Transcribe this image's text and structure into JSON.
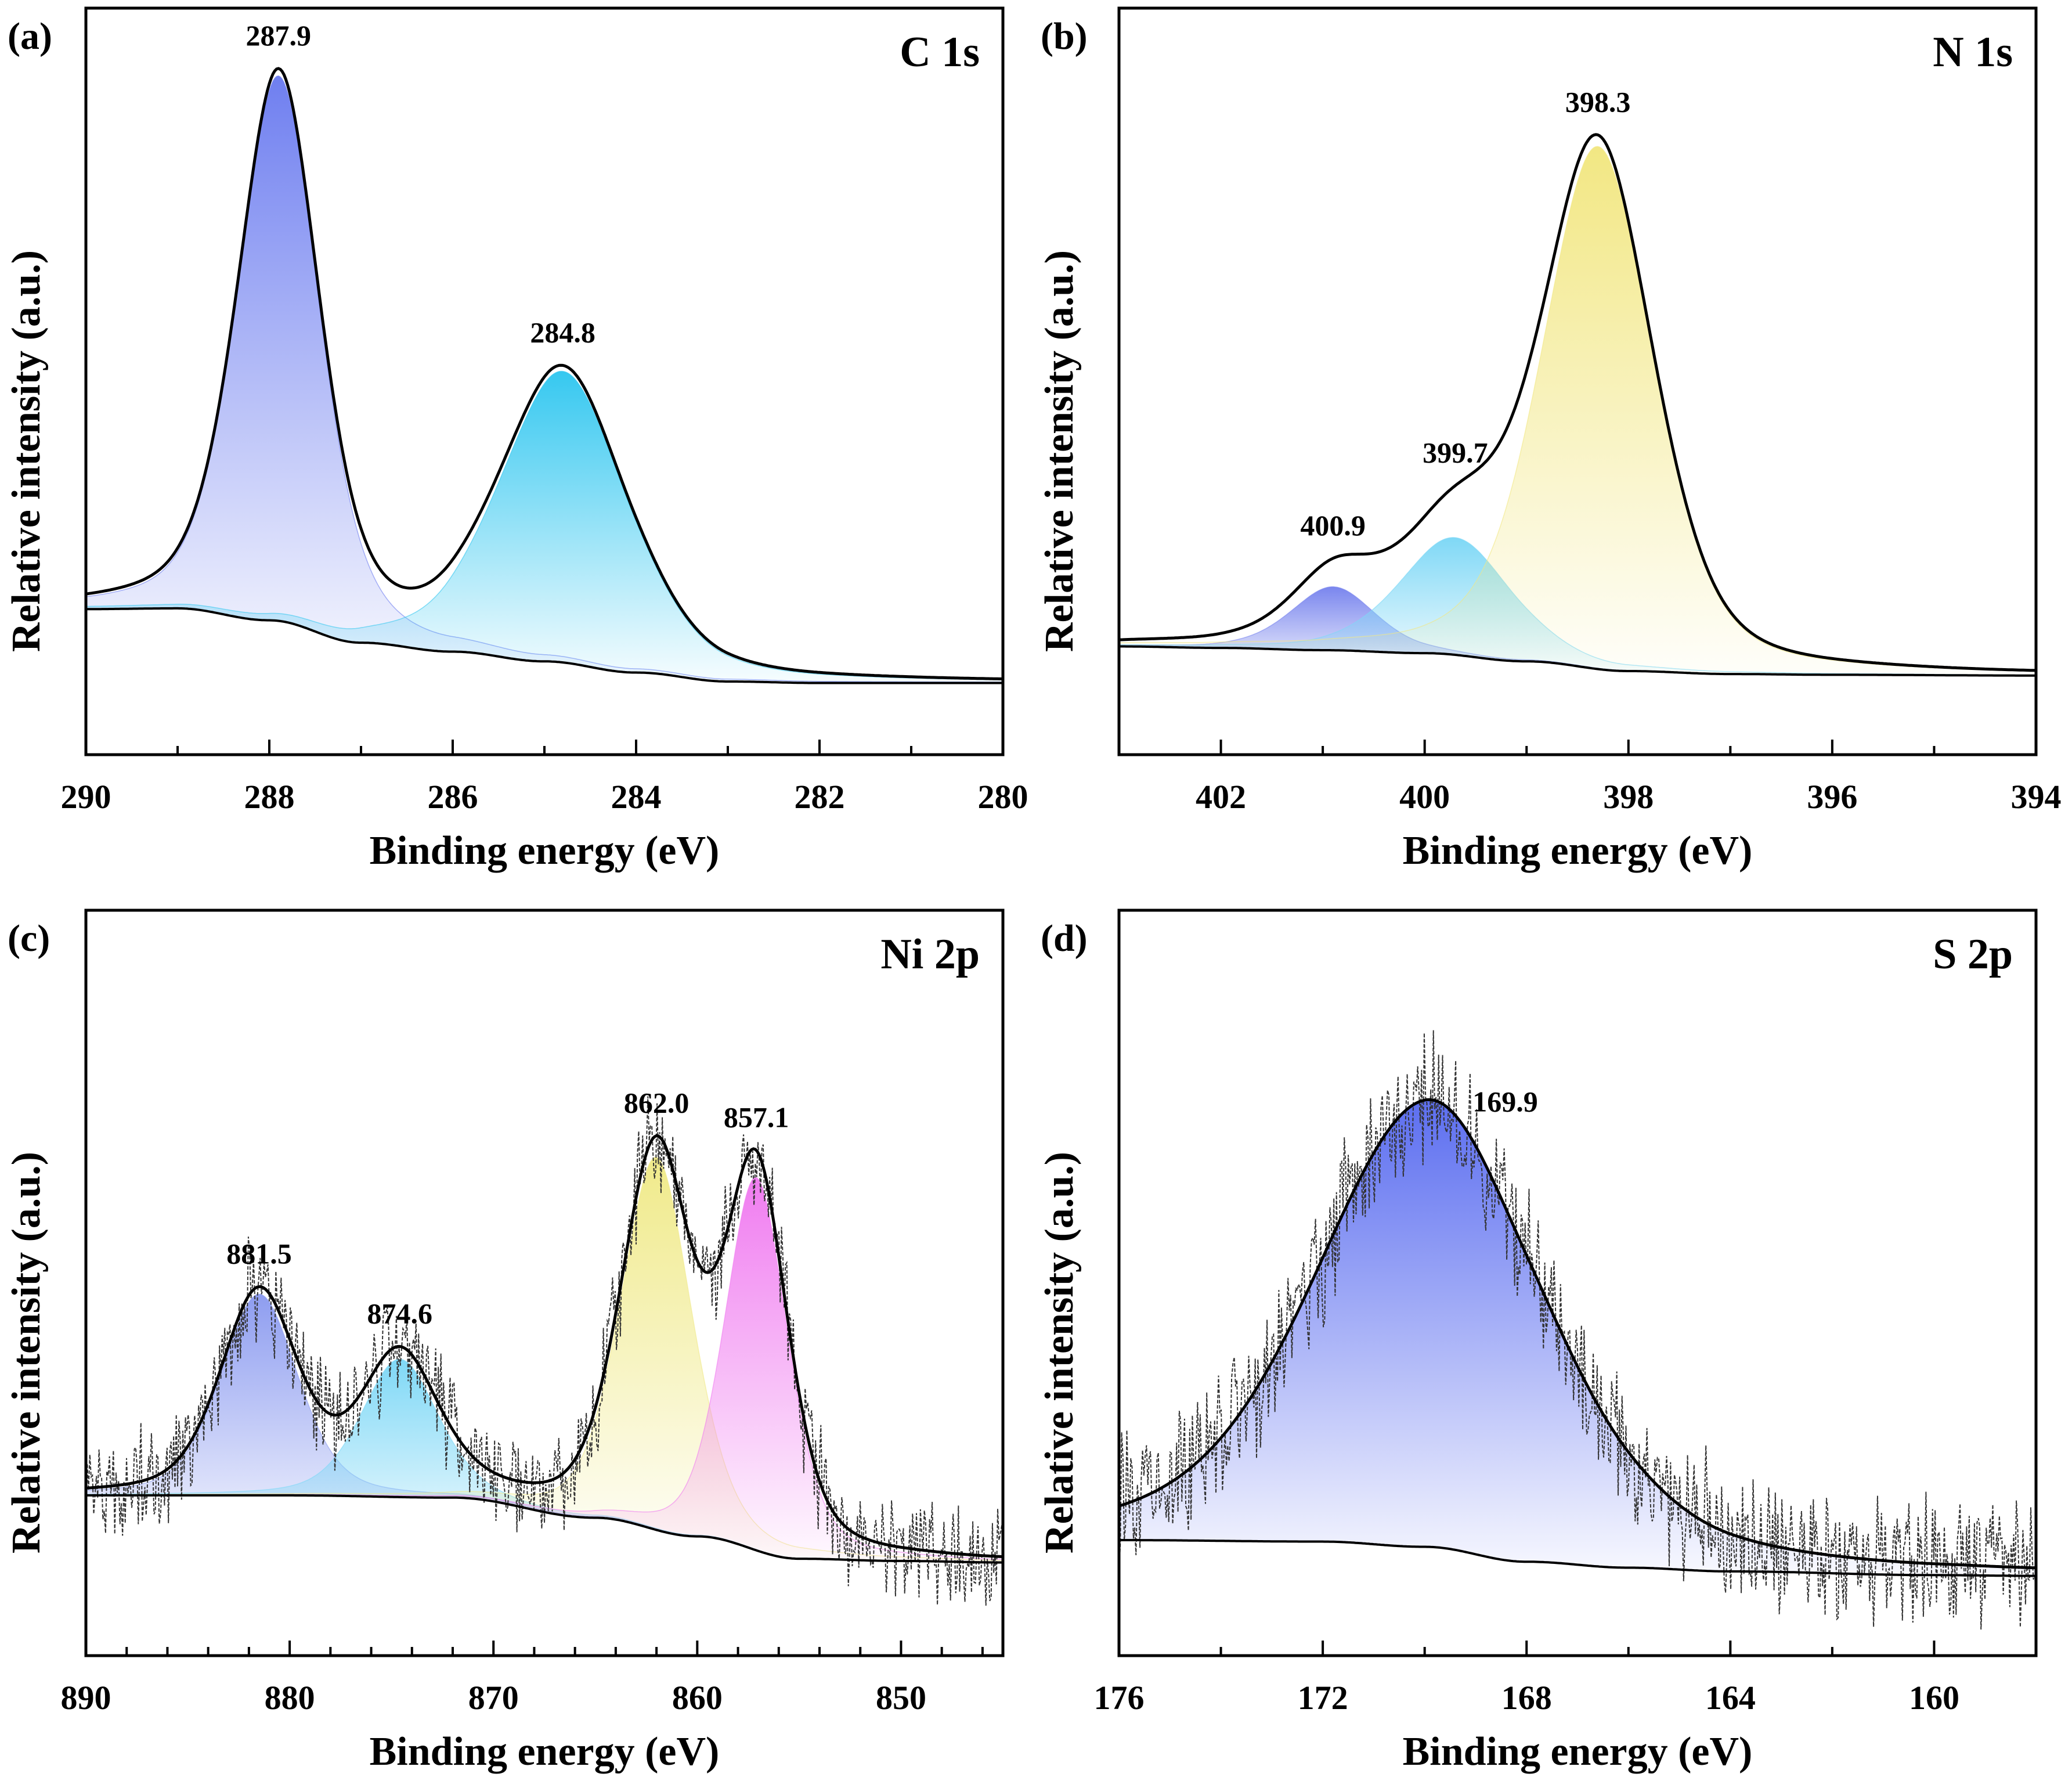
{
  "figure": {
    "x_title": "Binding energy (eV)",
    "y_title": "Relative intensity (a.u.)"
  },
  "chart_data": [
    {
      "type": "line",
      "panel_label": "(a)",
      "title": "C 1s",
      "xlabel": "Binding energy (eV)",
      "ylabel": "Relative intensity (a.u.)",
      "xlim": [
        290,
        280
      ],
      "xticks": [
        290,
        288,
        286,
        284,
        282,
        280
      ],
      "minor_step": 1,
      "ylim": [
        0,
        1
      ],
      "raw_points": false,
      "baseline": [
        [
          290,
          0.195
        ],
        [
          289,
          0.196
        ],
        [
          288,
          0.18
        ],
        [
          287,
          0.15
        ],
        [
          286,
          0.138
        ],
        [
          285,
          0.125
        ],
        [
          284,
          0.11
        ],
        [
          283,
          0.098
        ],
        [
          282,
          0.096
        ],
        [
          281,
          0.096
        ],
        [
          280,
          0.096
        ]
      ],
      "peaks": [
        {
          "center": 287.9,
          "height": 0.73,
          "width": 0.45,
          "color": "#6f7ff0",
          "label": "287.9"
        },
        {
          "center": 284.8,
          "height": 0.39,
          "width": 0.7,
          "color": "#36c8f0",
          "label": "284.8"
        }
      ]
    },
    {
      "type": "line",
      "panel_label": "(b)",
      "title": "N 1s",
      "xlabel": "Binding energy (eV)",
      "ylabel": "Relative intensity (a.u.)",
      "xlim": [
        403,
        394
      ],
      "xticks": [
        402,
        400,
        398,
        396,
        394
      ],
      "minor_step": 1,
      "ylim": [
        0,
        1
      ],
      "raw_points": false,
      "baseline": [
        [
          403,
          0.145
        ],
        [
          402,
          0.143
        ],
        [
          401,
          0.14
        ],
        [
          400,
          0.136
        ],
        [
          399,
          0.125
        ],
        [
          398,
          0.112
        ],
        [
          397,
          0.108
        ],
        [
          396,
          0.107
        ],
        [
          394,
          0.106
        ]
      ],
      "peaks": [
        {
          "center": 400.9,
          "height": 0.085,
          "width": 0.42,
          "color": "#7a86ee",
          "label": "400.9"
        },
        {
          "center": 399.7,
          "height": 0.157,
          "width": 0.55,
          "color": "#7fd8f6",
          "label": "399.7"
        },
        {
          "center": 398.3,
          "height": 0.7,
          "width": 0.55,
          "color": "#f2e783",
          "label": "398.3"
        }
      ]
    },
    {
      "type": "line",
      "panel_label": "(c)",
      "title": "Ni 2p",
      "xlabel": "Binding energy (eV)",
      "ylabel": "Relative intensity (a.u.)",
      "xlim": [
        890,
        845
      ],
      "xticks": [
        890,
        880,
        870,
        860,
        850
      ],
      "minor_step": 2,
      "ylim": [
        0,
        1
      ],
      "raw_points": true,
      "baseline": [
        [
          890,
          0.215
        ],
        [
          880,
          0.215
        ],
        [
          872,
          0.212
        ],
        [
          865,
          0.185
        ],
        [
          860,
          0.16
        ],
        [
          855,
          0.13
        ],
        [
          850,
          0.127
        ],
        [
          845,
          0.125
        ]
      ],
      "peaks": [
        {
          "center": 881.5,
          "height": 0.27,
          "width": 1.9,
          "color": "#8e9df0",
          "label": "881.5"
        },
        {
          "center": 874.6,
          "height": 0.185,
          "width": 1.9,
          "color": "#7fd8f6",
          "label": "874.6"
        },
        {
          "center": 862.0,
          "height": 0.5,
          "width": 1.75,
          "color": "#f0ea8a",
          "label": "862.0"
        },
        {
          "center": 857.1,
          "height": 0.5,
          "width": 1.55,
          "color": "#f07cf0",
          "label": "857.1"
        }
      ]
    },
    {
      "type": "line",
      "panel_label": "(d)",
      "title": "S 2p",
      "xlabel": "Binding energy (eV)",
      "ylabel": "Relative intensity (a.u.)",
      "xlim": [
        176,
        158
      ],
      "xticks": [
        176,
        172,
        168,
        164,
        160
      ],
      "minor_step": 2,
      "ylim": [
        0,
        1
      ],
      "raw_points": true,
      "baseline": [
        [
          176,
          0.155
        ],
        [
          172,
          0.153
        ],
        [
          170,
          0.146
        ],
        [
          168,
          0.126
        ],
        [
          166,
          0.118
        ],
        [
          164,
          0.113
        ],
        [
          160,
          0.108
        ],
        [
          158,
          0.107
        ]
      ],
      "peaks": [
        {
          "center": 169.9,
          "height": 0.6,
          "width": 2.25,
          "color": "#5c6ef0",
          "label": "169.9"
        }
      ]
    }
  ]
}
